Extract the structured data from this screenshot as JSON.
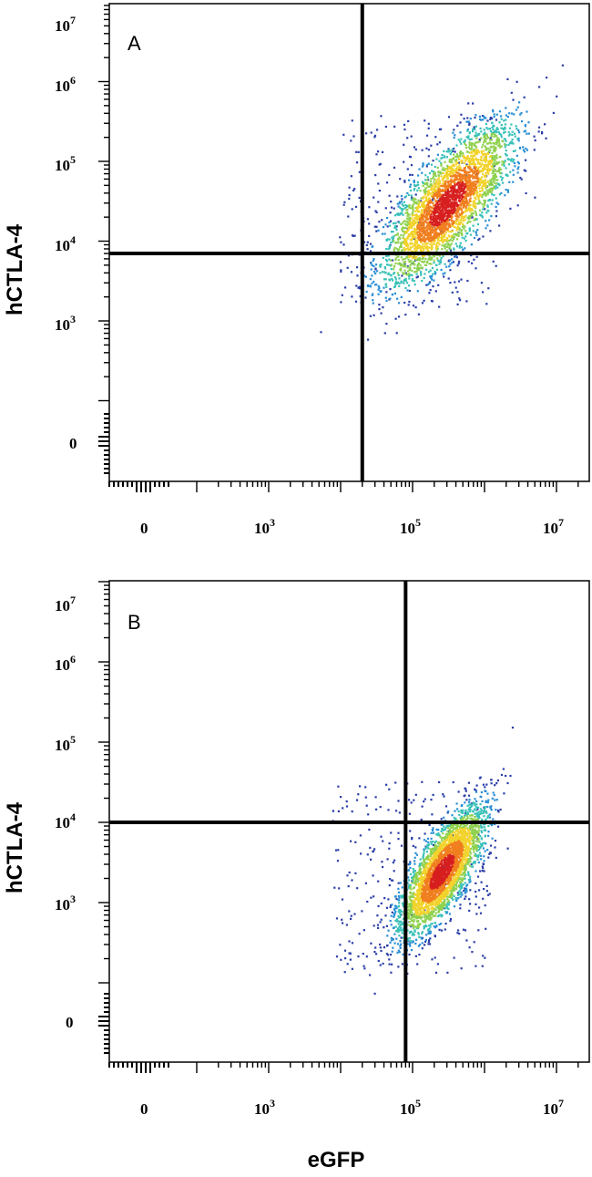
{
  "chart_data": [
    {
      "type": "scatter",
      "panel_label": "A",
      "xlabel": "",
      "ylabel": "hCTLA-4",
      "x_ticks": [
        {
          "base": "0",
          "exp": ""
        },
        {
          "base": "10",
          "exp": "3"
        },
        {
          "base": "10",
          "exp": "5"
        },
        {
          "base": "10",
          "exp": "7"
        }
      ],
      "y_ticks": [
        {
          "base": "0",
          "exp": ""
        },
        {
          "base": "10",
          "exp": "3"
        },
        {
          "base": "10",
          "exp": "4"
        },
        {
          "base": "10",
          "exp": "5"
        },
        {
          "base": "10",
          "exp": "6"
        },
        {
          "base": "10",
          "exp": "7"
        }
      ],
      "scale": "biexponential (log above ~10^3)",
      "quadrant_gate": {
        "x": 20000,
        "y": 7000
      },
      "population": {
        "center_x": 300000,
        "center_y": 30000,
        "spread_log_x": 0.45,
        "spread_log_y": 0.5,
        "density": "high"
      },
      "colormap": [
        "#2b3fa8",
        "#2a8fd6",
        "#39c1b8",
        "#8fd14f",
        "#f2d32c",
        "#f07f1f",
        "#d71f1f"
      ]
    },
    {
      "type": "scatter",
      "panel_label": "B",
      "xlabel": "eGFP",
      "ylabel": "hCTLA-4",
      "x_ticks": [
        {
          "base": "0",
          "exp": ""
        },
        {
          "base": "10",
          "exp": "3"
        },
        {
          "base": "10",
          "exp": "5"
        },
        {
          "base": "10",
          "exp": "7"
        }
      ],
      "y_ticks": [
        {
          "base": "0",
          "exp": ""
        },
        {
          "base": "10",
          "exp": "3"
        },
        {
          "base": "10",
          "exp": "4"
        },
        {
          "base": "10",
          "exp": "5"
        },
        {
          "base": "10",
          "exp": "6"
        },
        {
          "base": "10",
          "exp": "7"
        }
      ],
      "scale": "biexponential (log above ~10^3)",
      "quadrant_gate": {
        "x": 80000,
        "y": 10000
      },
      "population": {
        "center_x": 250000,
        "center_y": 2500,
        "spread_log_x": 0.3,
        "spread_log_y": 0.4,
        "density": "high"
      },
      "colormap": [
        "#2b3fa8",
        "#2a8fd6",
        "#39c1b8",
        "#8fd14f",
        "#f2d32c",
        "#f07f1f",
        "#d71f1f"
      ]
    }
  ]
}
